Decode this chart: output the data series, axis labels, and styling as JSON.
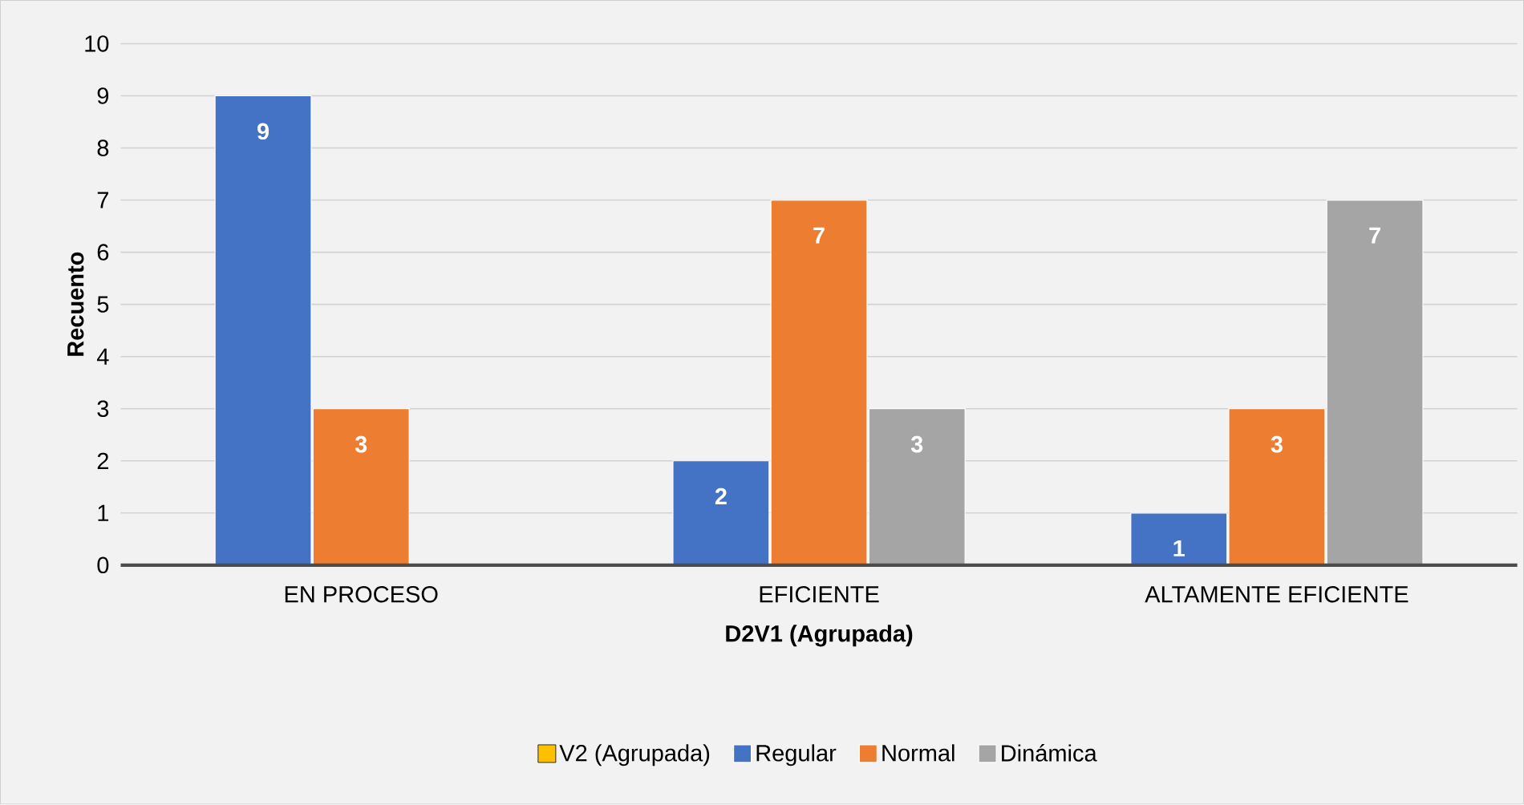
{
  "chart_data": {
    "type": "bar",
    "xlabel": "D2V1 (Agrupada)",
    "ylabel": "Recuento",
    "categories": [
      "EN PROCESO",
      "EFICIENTE",
      "ALTAMENTE EFICIENTE"
    ],
    "series": [
      {
        "name": "V2 (Agrupada)",
        "color": "#ffc000",
        "values": [
          null,
          null,
          null
        ]
      },
      {
        "name": "Regular",
        "color": "#4472c4",
        "values": [
          9,
          2,
          1
        ]
      },
      {
        "name": "Normal",
        "color": "#ed7d31",
        "values": [
          3,
          7,
          3
        ]
      },
      {
        "name": "Dinámica",
        "color": "#a5a5a5",
        "values": [
          null,
          3,
          7
        ]
      }
    ],
    "ylim": [
      0,
      10
    ],
    "yticks": [
      0,
      1,
      2,
      3,
      4,
      5,
      6,
      7,
      8,
      9,
      10
    ],
    "grid": "y",
    "legend": "bottom",
    "data_labels": true
  }
}
